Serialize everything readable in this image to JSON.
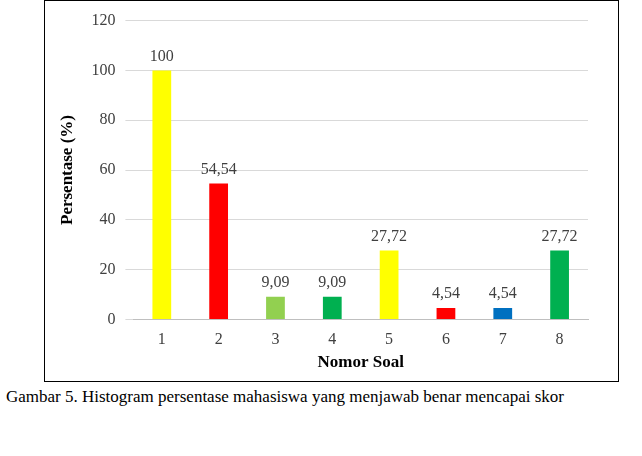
{
  "chart_data": {
    "type": "bar",
    "title": "Gambar 5. Histogram persentase mahasiswa yang menjawab benar mencapai skor",
    "x_label": "Nomor Soal",
    "y_label": "Persentase (%)",
    "categories": [
      "1",
      "2",
      "3",
      "4",
      "5",
      "6",
      "7",
      "8"
    ],
    "values": [
      100,
      54.54,
      9.09,
      9.09,
      27.72,
      4.54,
      4.54,
      27.72
    ],
    "value_labels": [
      "100",
      "54,54",
      "9,09",
      "9,09",
      "27,72",
      "4,54",
      "4,54",
      "27,72"
    ],
    "colors": [
      "#ffff00",
      "#ff0000",
      "#92d050",
      "#00b050",
      "#ffff00",
      "#ff0000",
      "#0070c0",
      "#00b050"
    ],
    "ylim": [
      0,
      120
    ],
    "yticks": [
      0,
      20,
      40,
      60,
      80,
      100,
      120
    ],
    "grid": true,
    "data_labels": true
  }
}
